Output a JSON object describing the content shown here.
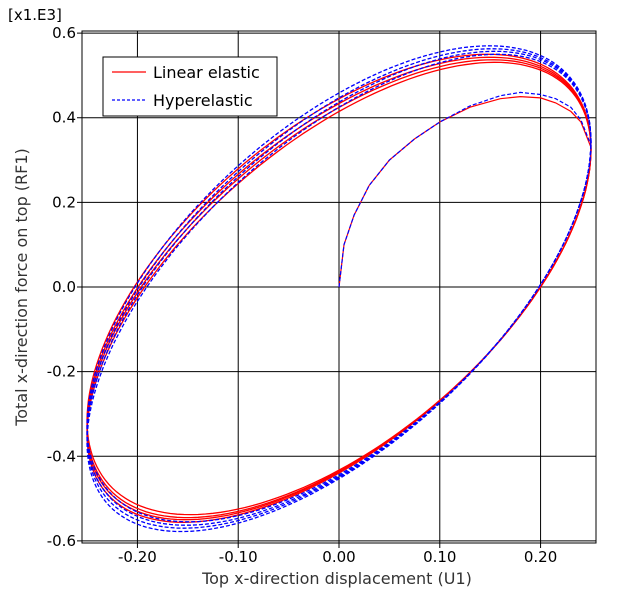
{
  "chart_data": {
    "type": "line",
    "multiplier_label": "[x1.E3]",
    "xlabel": "Top x-direction displacement (U1)",
    "ylabel": "Total x-direction force on top (RF1)",
    "xlim": [
      -0.255,
      0.255
    ],
    "ylim": [
      -0.605,
      0.605
    ],
    "x_ticks": [
      -0.2,
      -0.1,
      0.0,
      0.1,
      0.2
    ],
    "x_tick_labels": [
      "-0.20",
      "-0.10",
      "0.00",
      "0.10",
      "0.20"
    ],
    "y_ticks": [
      -0.6,
      -0.4,
      -0.2,
      0.0,
      0.2,
      0.4,
      0.6
    ],
    "y_tick_labels": [
      "-0.6",
      "-0.4",
      "-0.2",
      "0.0",
      "0.2",
      "0.4",
      "0.6"
    ],
    "grid": true,
    "legend_position": "top-left",
    "legend": [
      {
        "name": "Linear elastic",
        "color": "#ff0000",
        "style": "solid"
      },
      {
        "name": "Hyperelastic",
        "color": "#0000ff",
        "style": "dashed"
      }
    ],
    "series": [
      {
        "name": "Linear elastic",
        "color": "#ff0000",
        "style": "solid",
        "initial_loading": {
          "x": [
            0.0,
            0.005,
            0.015,
            0.03,
            0.05,
            0.075,
            0.1,
            0.13,
            0.16,
            0.18,
            0.2,
            0.215,
            0.23,
            0.24,
            0.25
          ],
          "y": [
            0.0,
            0.1,
            0.17,
            0.24,
            0.3,
            0.35,
            0.39,
            0.425,
            0.445,
            0.45,
            0.447,
            0.435,
            0.415,
            0.39,
            0.33
          ]
        },
        "cycles": [
          {
            "ymax": 0.55,
            "ymin": -0.538,
            "x_at_y0_up": -0.2,
            "x_at_y0_down": 0.2
          },
          {
            "ymax": 0.543,
            "ymin": -0.545,
            "x_at_y0_up": -0.2,
            "x_at_y0_down": 0.2
          },
          {
            "ymax": 0.537,
            "ymin": -0.55,
            "x_at_y0_up": -0.2,
            "x_at_y0_down": 0.2
          },
          {
            "ymax": 0.531,
            "ymin": -0.556,
            "x_at_y0_up": -0.2,
            "x_at_y0_down": 0.2
          }
        ]
      },
      {
        "name": "Hyperelastic",
        "color": "#0000ff",
        "style": "dashed",
        "initial_loading": {
          "x": [
            0.0,
            0.005,
            0.015,
            0.03,
            0.05,
            0.075,
            0.1,
            0.13,
            0.16,
            0.18,
            0.2,
            0.215,
            0.23,
            0.24,
            0.25
          ],
          "y": [
            0.0,
            0.1,
            0.17,
            0.24,
            0.3,
            0.35,
            0.39,
            0.428,
            0.452,
            0.46,
            0.455,
            0.445,
            0.425,
            0.395,
            0.335
          ]
        },
        "cycles": [
          {
            "ymax": 0.57,
            "ymin": -0.555,
            "x_at_y0_up": -0.202,
            "x_at_y0_down": 0.195
          },
          {
            "ymax": 0.563,
            "ymin": -0.563,
            "x_at_y0_up": -0.202,
            "x_at_y0_down": 0.195
          },
          {
            "ymax": 0.557,
            "ymin": -0.57,
            "x_at_y0_up": -0.202,
            "x_at_y0_down": 0.195
          },
          {
            "ymax": 0.55,
            "ymin": -0.578,
            "x_at_y0_up": -0.202,
            "x_at_y0_down": 0.195
          }
        ]
      }
    ]
  }
}
